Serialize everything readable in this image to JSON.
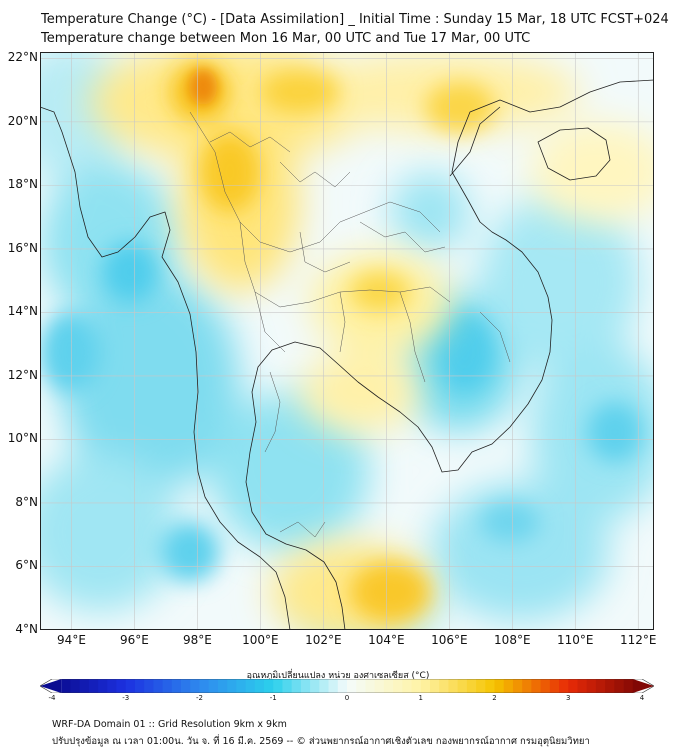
{
  "header": {
    "title_line1": "Temperature Change (°C) - [Data Assimilation] _ Initial Time : Sunday 15 Mar, 18 UTC FCST+024",
    "title_line2": "Temperature change between Mon 16 Mar, 00 UTC and Tue 17 Mar, 00 UTC"
  },
  "map": {
    "lon_range": [
      93,
      112.5
    ],
    "lat_range": [
      4,
      22.2
    ],
    "lat_labels": [
      "22°N",
      "20°N",
      "18°N",
      "16°N",
      "14°N",
      "12°N",
      "10°N",
      "8°N",
      "6°N",
      "4°N"
    ],
    "lon_labels": [
      "94°E",
      "96°E",
      "98°E",
      "100°E",
      "102°E",
      "104°E",
      "106°E",
      "108°E",
      "110°E",
      "112°E"
    ],
    "lat_values": [
      22,
      20,
      18,
      16,
      14,
      12,
      10,
      8,
      6,
      4
    ],
    "lon_values": [
      94,
      96,
      98,
      100,
      102,
      104,
      106,
      108,
      110,
      112
    ]
  },
  "colorbar": {
    "title": "อุณหภูมิเปลี่ยนแปลง หน่วย องศาเซลเซียส (°C)",
    "min": -4,
    "max": 4,
    "ticks": [
      "-4",
      "-3",
      "-2",
      "-1",
      "0",
      "1",
      "2",
      "3",
      "4"
    ],
    "colors": [
      "#0a0a8c",
      "#1c30e0",
      "#2e88ee",
      "#2cd0ec",
      "#f4fbfb",
      "#fff3a6",
      "#f5c400",
      "#e82a06",
      "#7a0505"
    ]
  },
  "footer": {
    "line1": "WRF-DA Domain 01 :: Grid Resolution 9km x 9km",
    "line2": "ปรับปรุงข้อมูล ณ เวลา 01:00น. วัน จ. ที่ 16 มี.ค. 2569 -- © ส่วนพยากรณ์อากาศเชิงตัวเลข กองพยากรณ์อากาศ กรมอุตุนิยมวิทยา"
  }
}
